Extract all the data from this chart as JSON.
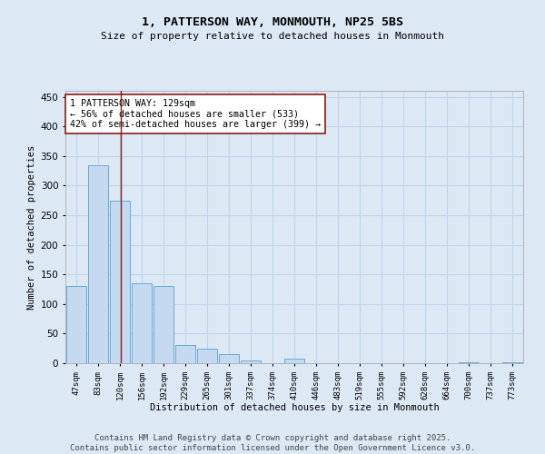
{
  "title_line1": "1, PATTERSON WAY, MONMOUTH, NP25 5BS",
  "title_line2": "Size of property relative to detached houses in Monmouth",
  "xlabel": "Distribution of detached houses by size in Monmouth",
  "ylabel": "Number of detached properties",
  "categories": [
    "47sqm",
    "83sqm",
    "120sqm",
    "156sqm",
    "192sqm",
    "229sqm",
    "265sqm",
    "301sqm",
    "337sqm",
    "374sqm",
    "410sqm",
    "446sqm",
    "483sqm",
    "519sqm",
    "555sqm",
    "592sqm",
    "628sqm",
    "664sqm",
    "700sqm",
    "737sqm",
    "773sqm"
  ],
  "values": [
    130,
    335,
    275,
    135,
    130,
    30,
    25,
    15,
    5,
    0,
    8,
    0,
    0,
    0,
    0,
    0,
    0,
    0,
    2,
    0,
    2
  ],
  "bar_color": "#c5d9f0",
  "bar_edge_color": "#6aaad4",
  "vline_color": "#8b1a1a",
  "vline_x": 2.05,
  "annotation_text": "1 PATTERSON WAY: 129sqm\n← 56% of detached houses are smaller (533)\n42% of semi-detached houses are larger (399) →",
  "annotation_box_color": "#ffffff",
  "annotation_box_edge_color": "#8b1a1a",
  "annotation_fontsize": 7.2,
  "ylim": [
    0,
    460
  ],
  "yticks": [
    0,
    50,
    100,
    150,
    200,
    250,
    300,
    350,
    400,
    450
  ],
  "grid_color": "#c0d4e8",
  "background_color": "#dce9f5",
  "footer_line1": "Contains HM Land Registry data © Crown copyright and database right 2025.",
  "footer_line2": "Contains public sector information licensed under the Open Government Licence v3.0.",
  "footer_fontsize": 6.5,
  "title_fontsize1": 9.5,
  "title_fontsize2": 8.0
}
